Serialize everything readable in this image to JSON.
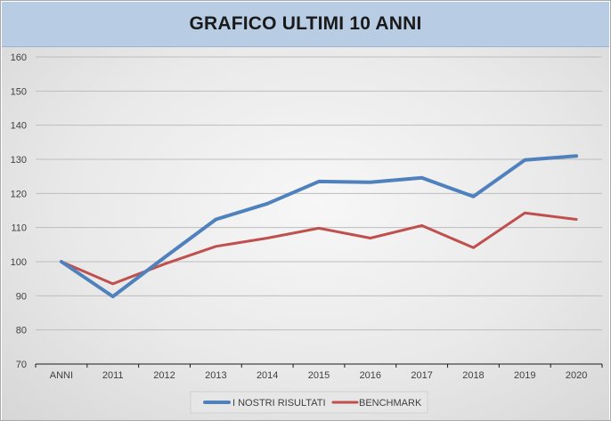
{
  "chart_data": {
    "type": "line",
    "title": "GRAFICO ULTIMI 10 ANNI",
    "categories": [
      "ANNI",
      "2011",
      "2012",
      "2013",
      "2014",
      "2015",
      "2016",
      "2017",
      "2018",
      "2019",
      "2020"
    ],
    "series": [
      {
        "name": "I NOSTRI RISULTATI",
        "color": "#4f81bd",
        "values": [
          100,
          89.8,
          101.2,
          112.4,
          117,
          123.5,
          123.3,
          124.6,
          119.1,
          129.8,
          131
        ]
      },
      {
        "name": "BENCHMARK",
        "color": "#c0504d",
        "values": [
          100,
          93.5,
          99.3,
          104.5,
          106.9,
          109.8,
          106.9,
          110.6,
          104.1,
          114.3,
          112.4
        ]
      }
    ],
    "ylim": [
      70,
      160
    ],
    "yticks": [
      70,
      80,
      90,
      100,
      110,
      120,
      130,
      140,
      150,
      160
    ],
    "grid": true,
    "legend_position": "bottom"
  }
}
